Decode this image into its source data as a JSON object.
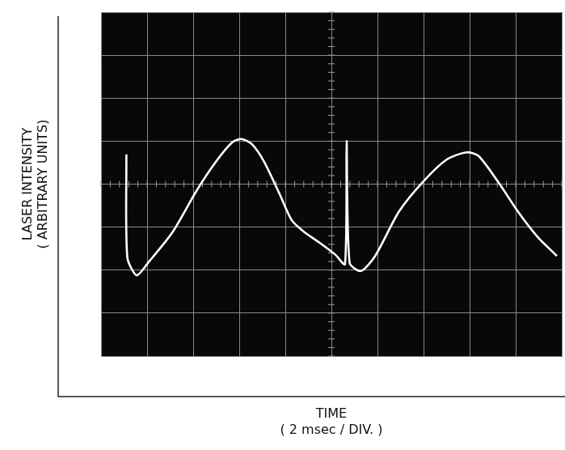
{
  "chart_data": {
    "type": "line",
    "x_label": [
      "TIME",
      "( 2 msec / DIV. )"
    ],
    "y_label": [
      "LASER INTENSITY",
      "( ARBITRARY UNITS)"
    ],
    "x": [
      1.1,
      1.14,
      1.55,
      2.07,
      3.1,
      4.14,
      5.0,
      5.69,
      6.1,
      6.55,
      7.07,
      7.76,
      8.28,
      8.79,
      9.48,
      10.17,
      10.59,
      10.66,
      10.79,
      11.28,
      11.9,
      12.93,
      13.97,
      15.0,
      15.86,
      16.38,
      17.24,
      18.1,
      18.97,
      19.79
    ],
    "values": [
      4.69,
      2.3,
      1.88,
      2.19,
      2.88,
      3.84,
      4.53,
      4.97,
      5.05,
      4.93,
      4.53,
      3.76,
      3.16,
      2.9,
      2.64,
      2.36,
      2.14,
      5.0,
      2.17,
      1.98,
      2.33,
      3.36,
      4.05,
      4.57,
      4.74,
      4.66,
      4.05,
      3.36,
      2.76,
      2.33
    ],
    "color": "#ffffff",
    "xlim": [
      0,
      20
    ],
    "xticks": [
      0,
      2,
      4,
      6,
      8,
      10,
      12,
      14,
      16,
      18,
      20
    ],
    "ylim": [
      0,
      8
    ],
    "yticks": [
      0,
      1,
      2,
      3,
      4,
      5,
      6,
      7,
      8
    ],
    "grid": true,
    "tick_labels": false
  }
}
